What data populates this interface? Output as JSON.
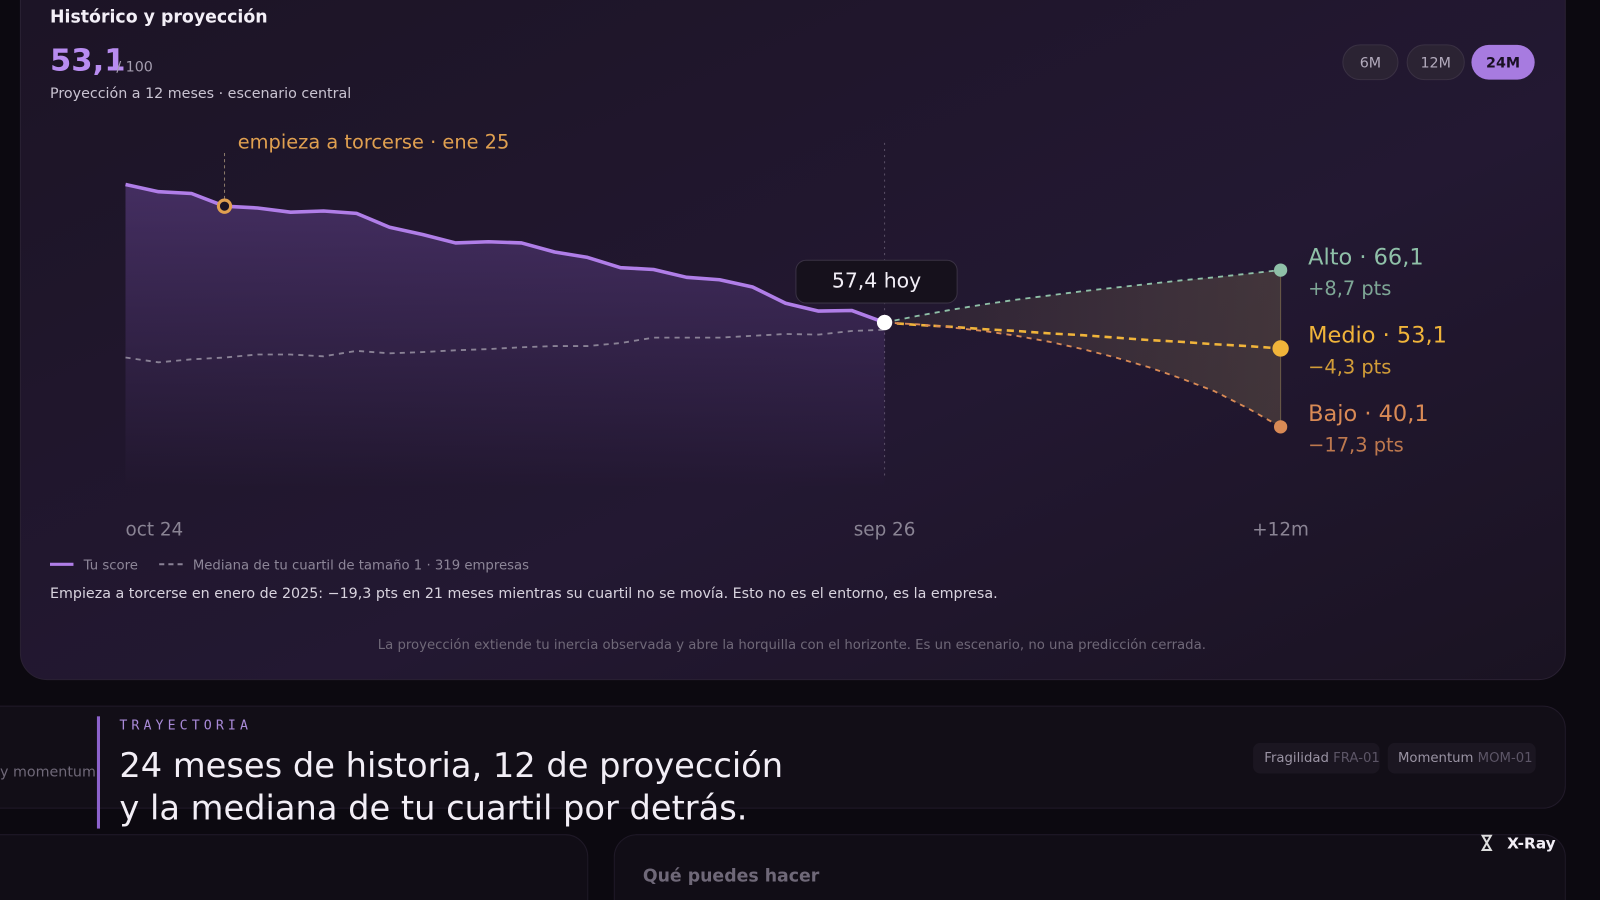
{
  "header": {
    "title": "Histórico y proyección",
    "score": "53,1",
    "score_max": "/ 100",
    "subtitle": "Proyección a 12 meses · escenario central",
    "ranges": [
      "6M",
      "12M",
      "24M"
    ],
    "active_range": "24M"
  },
  "chart_data": {
    "type": "line",
    "categories": [
      "oct 24",
      null,
      null,
      null,
      null,
      null,
      null,
      null,
      null,
      null,
      null,
      null,
      null,
      null,
      null,
      null,
      null,
      null,
      null,
      null,
      null,
      null,
      null,
      "sep 26",
      null,
      null,
      null,
      null,
      null,
      null,
      null,
      null,
      null,
      null,
      null,
      "+12m"
    ],
    "ylim": [
      30,
      85
    ],
    "series": [
      {
        "name": "Tu score",
        "color": "#b07ee8",
        "style": "solid",
        "values": [
          80.3,
          79.1,
          78.8,
          76.7,
          76.4,
          75.7,
          75.9,
          75.5,
          73.2,
          72.0,
          70.6,
          70.8,
          70.6,
          69.1,
          68.2,
          66.5,
          66.2,
          64.9,
          64.5,
          63.3,
          60.6,
          59.3,
          59.4,
          57.4,
          null,
          null,
          null,
          null,
          null,
          null,
          null,
          null,
          null,
          null,
          null,
          null
        ]
      },
      {
        "name": "Mediana de tu cuartil de tamaño 1 · 319 empresas",
        "color": "#8a8296",
        "style": "dashed",
        "values": [
          51.6,
          50.8,
          51.3,
          51.6,
          52.1,
          52.1,
          51.8,
          52.7,
          52.3,
          52.5,
          52.8,
          53.0,
          53.3,
          53.5,
          53.5,
          54.0,
          54.9,
          54.9,
          54.9,
          55.2,
          55.5,
          55.4,
          56.0,
          56.2,
          null,
          null,
          null,
          null,
          null,
          null,
          null,
          null,
          null,
          null,
          null,
          null
        ]
      },
      {
        "name": "Alto · 66,1",
        "delta_label": "+8,7 pts",
        "color": "#8fc0a8",
        "style": "dashed",
        "values": [
          null,
          null,
          null,
          null,
          null,
          null,
          null,
          null,
          null,
          null,
          null,
          null,
          null,
          null,
          null,
          null,
          null,
          null,
          null,
          null,
          null,
          null,
          null,
          57.4,
          58.5,
          59.5,
          60.4,
          61.2,
          61.9,
          62.6,
          63.2,
          63.8,
          64.4,
          64.9,
          65.5,
          66.1
        ]
      },
      {
        "name": "Medio · 53,1",
        "delta_label": "−4,3 pts",
        "color": "#f0b43a",
        "style": "dashed",
        "values": [
          null,
          null,
          null,
          null,
          null,
          null,
          null,
          null,
          null,
          null,
          null,
          null,
          null,
          null,
          null,
          null,
          null,
          null,
          null,
          null,
          null,
          null,
          null,
          57.4,
          57.0,
          56.7,
          56.3,
          56.0,
          55.6,
          55.3,
          54.9,
          54.5,
          54.2,
          53.8,
          53.5,
          53.1
        ]
      },
      {
        "name": "Bajo · 40,1",
        "delta_label": "−17,3 pts",
        "color": "#d98a55",
        "style": "dashed",
        "values": [
          null,
          null,
          null,
          null,
          null,
          null,
          null,
          null,
          null,
          null,
          null,
          null,
          null,
          null,
          null,
          null,
          null,
          null,
          null,
          null,
          null,
          null,
          null,
          57.4,
          57.1,
          56.6,
          56.0,
          55.2,
          54.2,
          53.0,
          51.6,
          50.0,
          48.1,
          46.0,
          43.2,
          40.1
        ]
      }
    ],
    "annotations": [
      {
        "text": "empieza a torcerse · ene 25",
        "at": 3,
        "color": "#e0a050"
      },
      {
        "text": "57,4 hoy",
        "at": 23
      }
    ],
    "note": "Empieza a torcerse en enero de 2025: −19,3 pts en 21 meses mientras su cuartil no se movía. Esto no es el entorno, es la empresa.",
    "footnote": "La proyección extiende tu inercia observada y abre la horquilla con el horizonte. Es un escenario, no una predicción cerrada."
  },
  "section": {
    "side_text": "y momentum.",
    "kicker": "TRAYECTORIA",
    "heading": [
      "24 meses de historia, 12 de proyección",
      "y la mediana de tu cuartil por detrás."
    ],
    "chips": [
      {
        "label": "Fragilidad",
        "code": "FRA-01"
      },
      {
        "label": "Momentum",
        "code": "MOM-01"
      }
    ]
  },
  "brand": "X-Ray",
  "next_card": "Qué puedes hacer"
}
